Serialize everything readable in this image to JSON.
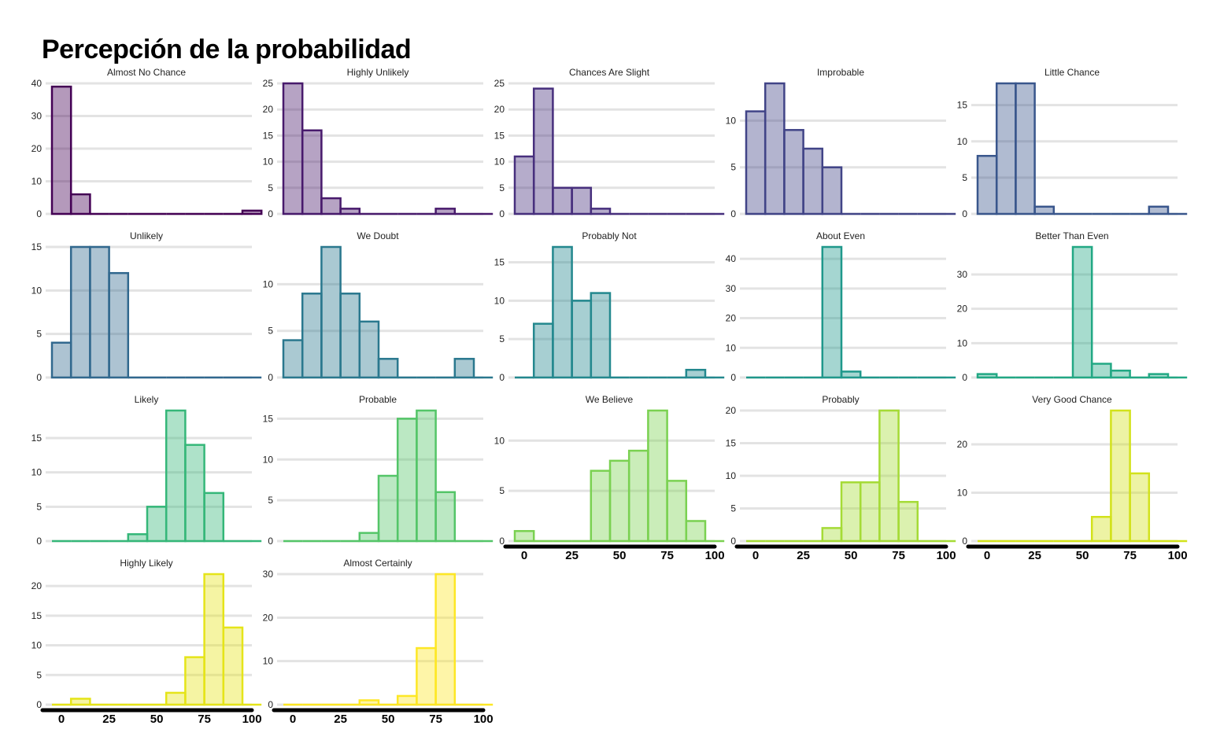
{
  "title": "Percepción de la probabilidad",
  "chart_data": {
    "type": "bar",
    "layout": "facet-grid",
    "bin_starts": [
      0,
      10,
      20,
      30,
      40,
      50,
      60,
      70,
      80,
      90,
      100
    ],
    "x_ticks": [
      "0",
      "25",
      "50",
      "75",
      "100"
    ],
    "panels": [
      {
        "label": "Almost No Chance",
        "color": "#440154",
        "yticks": [
          0,
          10,
          20,
          30,
          40
        ],
        "ymax": 40,
        "counts": [
          39,
          6,
          0,
          0,
          0,
          0,
          0,
          0,
          0,
          0,
          1
        ]
      },
      {
        "label": "Highly Unlikely",
        "color": "#481A6C",
        "yticks": [
          0,
          5,
          10,
          15,
          20,
          25
        ],
        "ymax": 25,
        "counts": [
          25,
          16,
          3,
          1,
          0,
          0,
          0,
          0,
          1,
          0,
          0
        ]
      },
      {
        "label": "Chances Are Slight",
        "color": "#472F7D",
        "yticks": [
          0,
          5,
          10,
          15,
          20,
          25
        ],
        "ymax": 25,
        "counts": [
          11,
          24,
          5,
          5,
          1,
          0,
          0,
          0,
          0,
          0,
          0
        ]
      },
      {
        "label": "Improbable",
        "color": "#414487",
        "yticks": [
          0,
          5,
          10
        ],
        "ymax": 14,
        "counts": [
          11,
          14,
          9,
          7,
          5,
          0,
          0,
          0,
          0,
          0,
          0
        ]
      },
      {
        "label": "Little Chance",
        "color": "#39568C",
        "yticks": [
          0,
          5,
          10,
          15
        ],
        "ymax": 18,
        "counts": [
          8,
          18,
          18,
          1,
          0,
          0,
          0,
          0,
          0,
          1,
          0
        ]
      },
      {
        "label": "Unlikely",
        "color": "#31688E",
        "yticks": [
          0,
          5,
          10,
          15
        ],
        "ymax": 15,
        "counts": [
          4,
          15,
          15,
          12,
          0,
          0,
          0,
          0,
          0,
          0,
          0
        ]
      },
      {
        "label": "We Doubt",
        "color": "#2A788E",
        "yticks": [
          0,
          5,
          10
        ],
        "ymax": 14,
        "counts": [
          4,
          9,
          14,
          9,
          6,
          2,
          0,
          0,
          0,
          2,
          0
        ]
      },
      {
        "label": "Probably Not",
        "color": "#23888E",
        "yticks": [
          0,
          5,
          10,
          15
        ],
        "ymax": 17,
        "counts": [
          0,
          7,
          17,
          10,
          11,
          0,
          0,
          0,
          0,
          1,
          0
        ]
      },
      {
        "label": "About Even",
        "color": "#1F988B",
        "yticks": [
          0,
          10,
          20,
          30,
          40
        ],
        "ymax": 44,
        "counts": [
          0,
          0,
          0,
          0,
          44,
          2,
          0,
          0,
          0,
          0,
          0
        ]
      },
      {
        "label": "Better Than Even",
        "color": "#22A884",
        "yticks": [
          0,
          10,
          20,
          30
        ],
        "ymax": 38,
        "counts": [
          1,
          0,
          0,
          0,
          0,
          38,
          4,
          2,
          0,
          1,
          0
        ]
      },
      {
        "label": "Likely",
        "color": "#35B779",
        "yticks": [
          0,
          5,
          10,
          15
        ],
        "ymax": 19,
        "counts": [
          0,
          0,
          0,
          0,
          1,
          5,
          19,
          14,
          7,
          0,
          0
        ]
      },
      {
        "label": "Probable",
        "color": "#54C568",
        "yticks": [
          0,
          5,
          10,
          15
        ],
        "ymax": 16,
        "counts": [
          0,
          0,
          0,
          0,
          1,
          8,
          15,
          16,
          6,
          0,
          0
        ]
      },
      {
        "label": "We Believe",
        "color": "#7AD151",
        "yticks": [
          0,
          5,
          10
        ],
        "ymax": 13,
        "counts": [
          1,
          0,
          0,
          0,
          7,
          8,
          9,
          13,
          6,
          2,
          0
        ]
      },
      {
        "label": "Probably",
        "color": "#A5DB36",
        "yticks": [
          0,
          5,
          10,
          15,
          20
        ],
        "ymax": 20,
        "counts": [
          0,
          0,
          0,
          0,
          2,
          9,
          9,
          20,
          6,
          0,
          0
        ]
      },
      {
        "label": "Very Good Chance",
        "color": "#D2E21B",
        "yticks": [
          0,
          10,
          20
        ],
        "ymax": 27,
        "counts": [
          0,
          0,
          0,
          0,
          0,
          0,
          5,
          27,
          14,
          0,
          0
        ]
      },
      {
        "label": "Highly Likely",
        "color": "#E5E419",
        "yticks": [
          0,
          5,
          10,
          15,
          20
        ],
        "ymax": 22,
        "counts": [
          0,
          1,
          0,
          0,
          0,
          0,
          2,
          8,
          22,
          13,
          0
        ]
      },
      {
        "label": "Almost Certainly",
        "color": "#FDE725",
        "yticks": [
          0,
          10,
          20,
          30
        ],
        "ymax": 30,
        "counts": [
          0,
          0,
          0,
          0,
          1,
          0,
          2,
          13,
          30,
          0,
          0
        ]
      }
    ]
  }
}
